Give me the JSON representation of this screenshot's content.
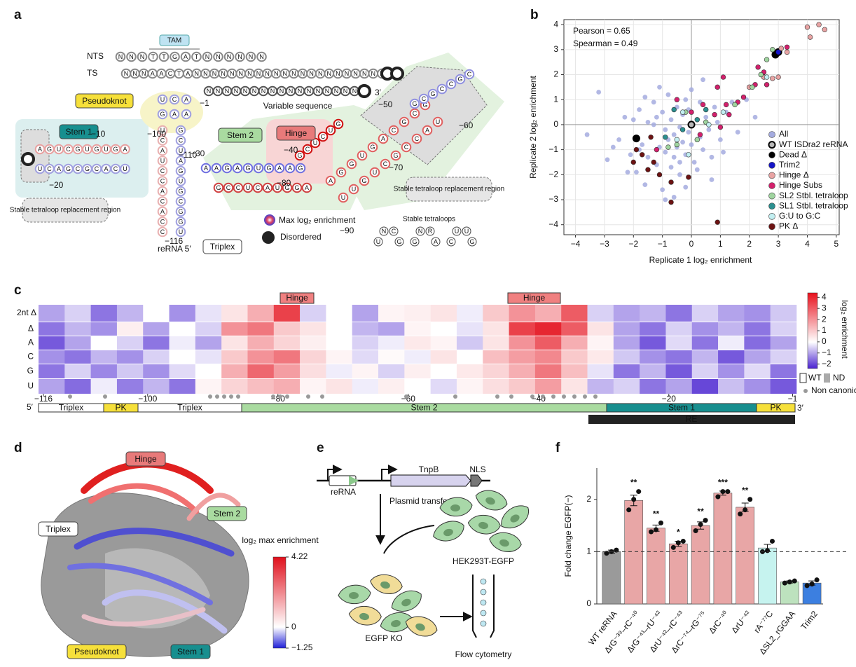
{
  "panel_labels": [
    "a",
    "b",
    "c",
    "d",
    "e",
    "f"
  ],
  "panel_a": {
    "tam": "TAM",
    "nts": "NTS",
    "ts": "TS",
    "pseudoknot": "Pseudoknot",
    "stem1": "Stem 1",
    "stem2": "Stem 2",
    "hinge": "Hinge",
    "variable": "Variable sequence",
    "tetraloop_region": [
      "Stable tetraloop replacement region",
      "Stable tetraloop replacement region"
    ],
    "triplex": "Triplex",
    "legend_max": "Max log₂ enrichment",
    "legend_disordered": "Disordered",
    "tetraloops_title": "Stable tetraloops",
    "tetraloops": [
      "UNCG",
      "GNRA",
      "CUUG"
    ],
    "rerna5": "reRNA 5′",
    "end3": "3′",
    "positions": [
      "−1",
      "−10",
      "−20",
      "−30",
      "−40",
      "−50",
      "−60",
      "−70",
      "−80",
      "−90",
      "−100",
      "−110",
      "−116"
    ],
    "strands": [
      "NNNTTGATNNNNNN",
      "NNNAACTANNNNNNNNNNNNNNNNNNNNNNN",
      "NNNNNNNNNNNNNNNNN",
      "AGUCGUGUGA",
      "UCAGCGCACU",
      "UCA",
      "GAA",
      "UCAUCCACACC",
      "GCUAGUGCGGU",
      "AAGAGUGAAG",
      "GCCUCAUGGA",
      "GCUCUG",
      "AGGUGACGCG",
      "UUGUCGCCAU",
      "GCGCCGC"
    ]
  },
  "chart_data": [
    {
      "type": "scatter",
      "xlabel": "Replicate 1 log₂ enrichment",
      "ylabel": "Replicate 2 log₂ enrichment",
      "annotations": [
        "Pearson = 0.65",
        "Spearman = 0.49"
      ],
      "xlim": [
        -4.4,
        5.1
      ],
      "ylim": [
        -4.4,
        4.2
      ],
      "xticks": [
        {
          "value": -4,
          "label": "−4"
        },
        {
          "value": -3,
          "label": "−3"
        },
        {
          "value": -2,
          "label": "−2"
        },
        {
          "value": -1,
          "label": "−1"
        },
        0,
        1,
        2,
        3,
        4,
        5
      ],
      "yticks": [
        {
          "value": -4,
          "label": "−4"
        },
        {
          "value": -3,
          "label": "−3"
        },
        {
          "value": -2,
          "label": "−2"
        },
        {
          "value": -1,
          "label": "−1"
        },
        0,
        1,
        2,
        3,
        4
      ],
      "grid": true,
      "zero_lines": true,
      "legend": "lower right",
      "series": [
        {
          "name": "All",
          "color": "#a4abdf",
          "x": [
            -3.6,
            -2.9,
            -2.5,
            -2.3,
            -2.1,
            -2.0,
            -1.9,
            -1.8,
            -1.7,
            -1.6,
            -1.5,
            -1.5,
            -1.4,
            -1.3,
            -1.2,
            -1.2,
            -1.1,
            -1.0,
            -1.0,
            -0.9,
            -0.9,
            -0.8,
            -0.8,
            -0.7,
            -0.7,
            -0.6,
            -0.6,
            -0.5,
            -0.5,
            -0.4,
            -0.4,
            -0.3,
            -0.3,
            -0.2,
            -0.2,
            -0.1,
            -0.1,
            0.0,
            0.0,
            0.1,
            0.2,
            0.3,
            0.3,
            0.4,
            0.5,
            0.6,
            0.7,
            0.8,
            0.9,
            1.0,
            1.2,
            1.4,
            1.6,
            1.9,
            2.2,
            -2.7,
            -1.6,
            -1.1,
            -0.6,
            0.2,
            0.7,
            -2.2,
            -1.3,
            -0.4,
            0.4,
            1.1,
            -0.9,
            -0.2,
            -1.8,
            -3.2
          ],
          "y": [
            -0.4,
            -1.4,
            -0.6,
            0.3,
            -1.2,
            0.2,
            -1.9,
            0.6,
            -0.8,
            -2.4,
            0.1,
            -1.3,
            -0.5,
            0.9,
            -1.6,
            0.3,
            -0.9,
            -2.6,
            0.5,
            -0.2,
            -1.1,
            1.2,
            -0.6,
            -1.7,
            0.2,
            -0.4,
            -1.3,
            0.7,
            -0.9,
            -0.1,
            -2.0,
            0.4,
            -0.7,
            1.0,
            -1.2,
            -0.3,
            0.6,
            -0.8,
            1.4,
            -1.5,
            0.2,
            -0.5,
            0.9,
            -1.0,
            0.3,
            -0.2,
            -1.3,
            0.7,
            0.1,
            -0.6,
            0.5,
            0.9,
            -0.3,
            1.0,
            0.3,
            -0.9,
            1.1,
            1.5,
            -2.9,
            -1.8,
            -2.2,
            -1.9,
            0.0,
            -1.5,
            1.8,
            -1.1,
            -3.0,
            -2.5,
            -1.0,
            1.3
          ]
        },
        {
          "name": "WT ISDra2 reRNA",
          "color": "#b8b8b8",
          "x": [
            0.0
          ],
          "y": [
            0.0
          ]
        },
        {
          "name": "Dead Δ",
          "color": "#000000",
          "x": [
            -1.9,
            2.9
          ],
          "y": [
            -0.55,
            2.8
          ]
        },
        {
          "name": "Trim2",
          "color": "#1414c8",
          "x": [
            3.0
          ],
          "y": [
            2.9
          ]
        },
        {
          "name": "Hinge Δ",
          "color": "#e8a3a3",
          "x": [
            4.0,
            4.6,
            4.1,
            4.4,
            2.8,
            3.0,
            2.5,
            3.3,
            2.0,
            3.1
          ],
          "y": [
            3.9,
            3.8,
            3.5,
            4.0,
            1.85,
            1.9,
            1.9,
            2.9,
            1.5,
            3.05
          ]
        },
        {
          "name": "Hinge Subs",
          "color": "#d3206c",
          "x": [
            2.3,
            2.5,
            3.3,
            2.2,
            2.6,
            1.1,
            1.3,
            0.9,
            1.2,
            0.4,
            -0.5,
            0.3,
            1.0,
            1.8,
            1.6,
            0.0,
            0.8,
            -1.2
          ],
          "y": [
            2.3,
            2.1,
            3.1,
            1.6,
            1.6,
            1.9,
            0.4,
            1.5,
            0.8,
            0.8,
            1.0,
            -0.4,
            -0.1,
            1.1,
            0.9,
            0.5,
            0.4,
            -1.0
          ]
        },
        {
          "name": "SL2 Stbl. tetraloop",
          "color": "#9fd49f",
          "x": [
            2.1,
            2.4,
            2.6,
            2.8,
            -0.2,
            -0.5,
            0.5,
            0.2,
            -0.8,
            1.5
          ],
          "y": [
            1.5,
            2.0,
            2.6,
            3.0,
            0.5,
            -0.8,
            0.1,
            -0.6,
            -0.9,
            0.8
          ]
        },
        {
          "name": "SL1 Stbl. tetraloop",
          "color": "#2a8f8f",
          "x": [
            -0.6,
            0.2,
            -0.9,
            -0.3,
            0.5
          ],
          "y": [
            0.6,
            0.2,
            -0.5,
            -0.2,
            0.6
          ]
        },
        {
          "name": "G:U to G:C",
          "color": "#c2eff1",
          "x": [
            1.1,
            -0.3,
            -0.5,
            -0.1,
            2.6,
            0.6
          ],
          "y": [
            0.5,
            0.5,
            -0.6,
            -1.2,
            1.9,
            0.0
          ]
        },
        {
          "name": "PK Δ",
          "color": "#6c1212",
          "x": [
            -1.9,
            -1.5,
            -1.3,
            -1.1,
            -2.0,
            -1.7,
            -0.1,
            -0.7,
            0.9,
            -0.7,
            -1.4
          ],
          "y": [
            -1.0,
            -1.8,
            -1.5,
            -2.0,
            -1.5,
            -1.2,
            -2.1,
            -2.3,
            -3.9,
            -3.1,
            -0.5
          ]
        }
      ]
    },
    {
      "type": "bar",
      "ylabel": "Fold change EGFP(−)",
      "ylim": [
        0,
        2.6
      ],
      "yticks": [
        0,
        1,
        2
      ],
      "ref_line": 1,
      "categories": [
        "WT reRNA",
        "ΔrG⁻³⁹–rC⁻⁴⁰",
        "ΔrG⁻⁴¹–rU⁻⁴²",
        "ΔrU⁻⁴²–rC⁻⁴³",
        "ΔrC⁻⁷⁴–rG⁻⁷⁵",
        "ΔrC⁻⁴⁰",
        "ΔrU⁻⁴²",
        "rA⁻⁷⁷C",
        "ΔSL2_rGGAA",
        "Trim2"
      ],
      "values": [
        1.0,
        1.98,
        1.45,
        1.15,
        1.5,
        2.12,
        1.85,
        1.07,
        0.42,
        0.4
      ],
      "errors": [
        0.03,
        0.1,
        0.06,
        0.05,
        0.07,
        0.04,
        0.08,
        0.07,
        0.02,
        0.04
      ],
      "points": [
        [
          0.97,
          1.0,
          1.03
        ],
        [
          1.8,
          2.0,
          2.15
        ],
        [
          1.38,
          1.42,
          1.55
        ],
        [
          1.08,
          1.17,
          1.2
        ],
        [
          1.4,
          1.52,
          1.6
        ],
        [
          2.05,
          2.15,
          2.15
        ],
        [
          1.72,
          1.8,
          2.0
        ],
        [
          1.0,
          1.02,
          1.2
        ],
        [
          0.4,
          0.42,
          0.44
        ],
        [
          0.35,
          0.38,
          0.46
        ]
      ],
      "colors": [
        "#9a9a9a",
        "#e8a6a6",
        "#e8a6a6",
        "#e8a6a6",
        "#e8a6a6",
        "#e8a6a6",
        "#e8a6a6",
        "#c6f3ef",
        "#bde2be",
        "#3c7fe0"
      ],
      "significance": [
        null,
        "**",
        "**",
        "*",
        "**",
        "***",
        "**",
        null,
        null,
        null
      ]
    }
  ],
  "heatmap": {
    "row_labels": [
      "2nt Δ",
      "Δ",
      "A",
      "C",
      "G",
      "U"
    ],
    "colorbar_lim": [
      -2.4,
      4.4
    ],
    "colorbar_title": "log₂ enrichment",
    "colorbar_ticks": [
      4,
      3,
      2,
      1,
      0,
      {
        "value": -1,
        "label": "−1"
      },
      {
        "value": -2,
        "label": "−2"
      }
    ],
    "xticks": [
      {
        "value": -116,
        "label": "−116"
      },
      {
        "value": -100,
        "label": "−100"
      },
      {
        "value": -80,
        "label": "−80"
      },
      {
        "value": -60,
        "label": "−60"
      },
      {
        "value": -40,
        "label": "−40"
      },
      {
        "value": -20,
        "label": "−20"
      },
      {
        "value": -1,
        "label": "−1"
      }
    ],
    "hinge_labels": [
      "Hinge",
      "Hinge"
    ],
    "regions": [
      "Triplex",
      "PK",
      "Triplex",
      "Stem 2",
      "Stem 1",
      "PK"
    ],
    "re": "RE",
    "end5": "5′",
    "end3": "3′",
    "legend": [
      "WT",
      "ND",
      "Non canonical base-pair"
    ],
    "rows": [
      [
        -1,
        -0.5,
        -1.5,
        -0.8,
        0,
        -1.2,
        -0.3,
        0.5,
        1.5,
        3.5,
        -0.5,
        0,
        -1,
        0.2,
        0.3,
        0.5,
        -0.2,
        1,
        2,
        1.5,
        3,
        -0.5,
        -1,
        -0.8,
        -1.5,
        -0.5,
        -1,
        -1.2,
        -0.6
      ],
      [
        -1.5,
        -0.8,
        -1.2,
        0.3,
        -1,
        0,
        -0.5,
        2,
        2.5,
        1,
        0.5,
        0,
        -0.8,
        -1,
        0.2,
        0,
        -0.3,
        0.5,
        3.5,
        4,
        3,
        0.5,
        -1,
        -1.5,
        -0.5,
        -1.2,
        -0.8,
        -1.5,
        -0.5
      ],
      [
        -1.8,
        -1,
        0,
        -0.5,
        -1.5,
        -0.2,
        -1,
        0.5,
        1.5,
        0.8,
        0.3,
        0,
        -0.5,
        -0.2,
        0.4,
        0.2,
        -0.6,
        0.5,
        2,
        3,
        1.5,
        0.2,
        -1,
        -1.8,
        -0.4,
        -1.5,
        -0.2,
        -1.6,
        -1
      ],
      [
        -1.2,
        -1.5,
        -0.8,
        -1.2,
        -0.5,
        0,
        -0.3,
        1,
        2,
        2.5,
        0.8,
        0.2,
        -0.4,
        0.1,
        -0.2,
        0.5,
        0,
        1.2,
        1.8,
        2.2,
        1,
        0.4,
        -0.6,
        -1.2,
        -1.5,
        -0.8,
        -1.8,
        -1,
        -0.5
      ],
      [
        -1.5,
        -0.5,
        -1.3,
        -0.6,
        -1.2,
        -0.4,
        0,
        1.5,
        2.8,
        1.8,
        0.6,
        -0.2,
        0.2,
        -0.5,
        0.3,
        0,
        0.4,
        0.8,
        1.5,
        2.5,
        1.2,
        -0.3,
        -1.5,
        -0.8,
        -1.8,
        -0.5,
        -1.2,
        -0.4,
        -1.5
      ],
      [
        -1,
        -1.6,
        -0.2,
        -1.4,
        -0.8,
        -1.5,
        0.2,
        0.8,
        1.2,
        1.5,
        0.2,
        0.5,
        -0.2,
        0.3,
        0,
        -0.4,
        0.2,
        0.6,
        1,
        1.8,
        0.5,
        -0.8,
        -0.5,
        -1.5,
        -1,
        -2,
        -0.7,
        -1.2,
        -1.8
      ]
    ]
  },
  "panel_d": {
    "labels": [
      "Hinge",
      "Stem 2",
      "Triplex",
      "Pseudoknot",
      "Stem 1"
    ],
    "colorbar_title": "log₂ max enrichment",
    "colorbar_lim": [
      -1.25,
      4.22
    ],
    "colorbar_ticks": [
      4.22,
      0,
      {
        "value": -1.25,
        "label": "−1.25"
      }
    ]
  },
  "panel_e": {
    "rerna": "reRNA",
    "tnpb": "TnpB",
    "nls": "NLS",
    "transfection": "Plasmid transfection",
    "hek": "HEK293T-EGFP",
    "ko": "EGFP KO",
    "flow": "Flow cytometry"
  }
}
